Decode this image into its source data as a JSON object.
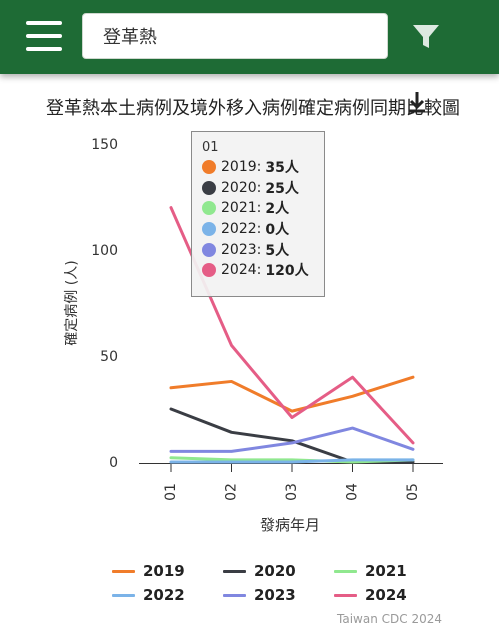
{
  "header": {
    "search_value": "登革熱",
    "menu_icon": "hamburger-menu-icon",
    "filter_icon": "filter-funnel-icon"
  },
  "chart_data": {
    "type": "line",
    "title": "登革熱本土病例及境外移入病例確定病例同期比較圖",
    "xlabel": "發病年月",
    "ylabel": "確定病例 (人)",
    "categories": [
      "01",
      "02",
      "03",
      "04",
      "05"
    ],
    "y_ticks": [
      "0",
      "50",
      "100",
      "150"
    ],
    "ylim": [
      0,
      150
    ],
    "grid": false,
    "legend_position": "bottom",
    "credits": "Taiwan CDC 2024",
    "series": [
      {
        "name": "2019",
        "color": "#f07c2a",
        "values": [
          35,
          38,
          24,
          31,
          40
        ]
      },
      {
        "name": "2020",
        "color": "#3a3d44",
        "values": [
          25,
          14,
          10,
          0,
          0
        ]
      },
      {
        "name": "2021",
        "color": "#90e88f",
        "values": [
          2,
          1,
          1,
          0,
          1
        ]
      },
      {
        "name": "2022",
        "color": "#7bb3e8",
        "values": [
          0,
          0,
          0,
          1,
          1
        ]
      },
      {
        "name": "2023",
        "color": "#8087e0",
        "values": [
          5,
          5,
          9,
          16,
          6
        ]
      },
      {
        "name": "2024",
        "color": "#e55d86",
        "values": [
          120,
          55,
          21,
          40,
          9
        ]
      }
    ],
    "tooltip": {
      "header": "01",
      "unit": "人",
      "rows": [
        {
          "label": "2019",
          "value": "35人",
          "color": "#f07c2a"
        },
        {
          "label": "2020",
          "value": "25人",
          "color": "#3a3d44"
        },
        {
          "label": "2021",
          "value": "2人",
          "color": "#90e88f"
        },
        {
          "label": "2022",
          "value": "0人",
          "color": "#7bb3e8"
        },
        {
          "label": "2023",
          "value": "5人",
          "color": "#8087e0"
        },
        {
          "label": "2024",
          "value": "120人",
          "color": "#e55d86"
        }
      ]
    }
  }
}
